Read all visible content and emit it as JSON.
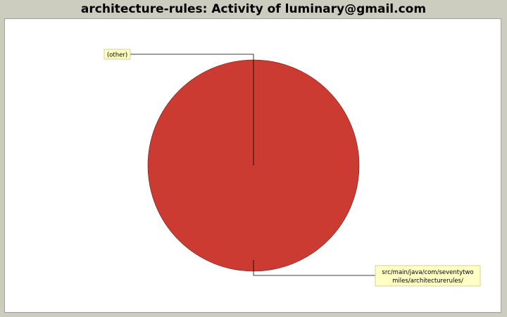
{
  "chart_data": {
    "type": "pie",
    "title": "architecture-rules: Activity of luminary@gmail.com",
    "slices": [
      {
        "label": "(other)",
        "value": 0
      },
      {
        "label_lines": [
          "src/main/java/com/seventytwo",
          "miles/architecturerules/"
        ],
        "value": 100
      }
    ],
    "colors": {
      "slice_main": "#cb3b32",
      "label_bg": "#ffffc4",
      "label_border": "#c8c890",
      "background": "#cdcdbf",
      "plot_bg": "#ffffff"
    }
  }
}
